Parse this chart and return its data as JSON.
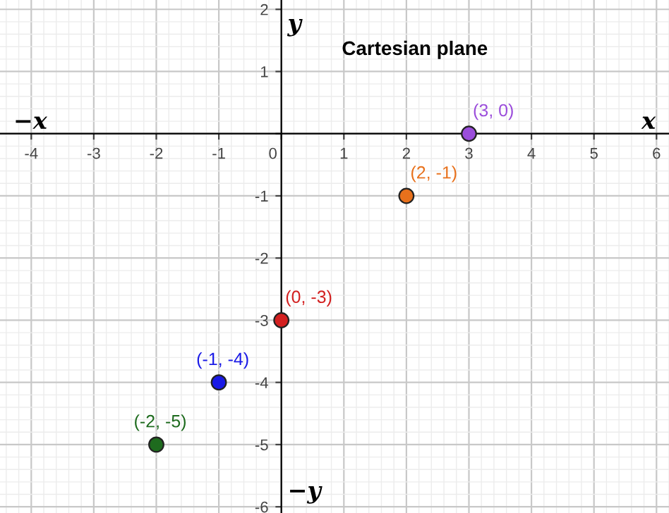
{
  "chart_data": {
    "type": "scatter",
    "title": "Cartesian plane",
    "xlabel": "x",
    "ylabel": "y",
    "x": [
      3,
      2,
      0,
      -1,
      -2
    ],
    "series": [
      {
        "values": [
          0,
          -1,
          -3,
          -4,
          -5
        ],
        "colors": [
          "#9b4ddb",
          "#e8711c",
          "#d32020",
          "#1a1ae6",
          "#1e6b1e"
        ]
      }
    ],
    "annotations": [
      "−x",
      "−y",
      {
        "text": "(3, 0)",
        "x": 3,
        "y": 0
      },
      {
        "text": "(2, -1)",
        "x": 2,
        "y": -1
      },
      {
        "text": "(0, -3)",
        "x": 0,
        "y": -3
      },
      {
        "text": "(-1, -4)",
        "x": -1,
        "y": -4
      },
      {
        "text": "(-2, -5)",
        "x": -2,
        "y": -5
      }
    ],
    "xlim": [
      -4.5,
      6.2
    ],
    "ylim": [
      -6.1,
      2.15
    ],
    "xticks": [
      -4,
      -3,
      -2,
      -1,
      0,
      1,
      2,
      3,
      4,
      5,
      6
    ],
    "yticks": [
      -6,
      -5,
      -4,
      -3,
      -2,
      -1,
      {
        "value": 0,
        "label": null
      },
      1,
      2
    ],
    "grid": true,
    "marker": "circle",
    "legend": false
  }
}
